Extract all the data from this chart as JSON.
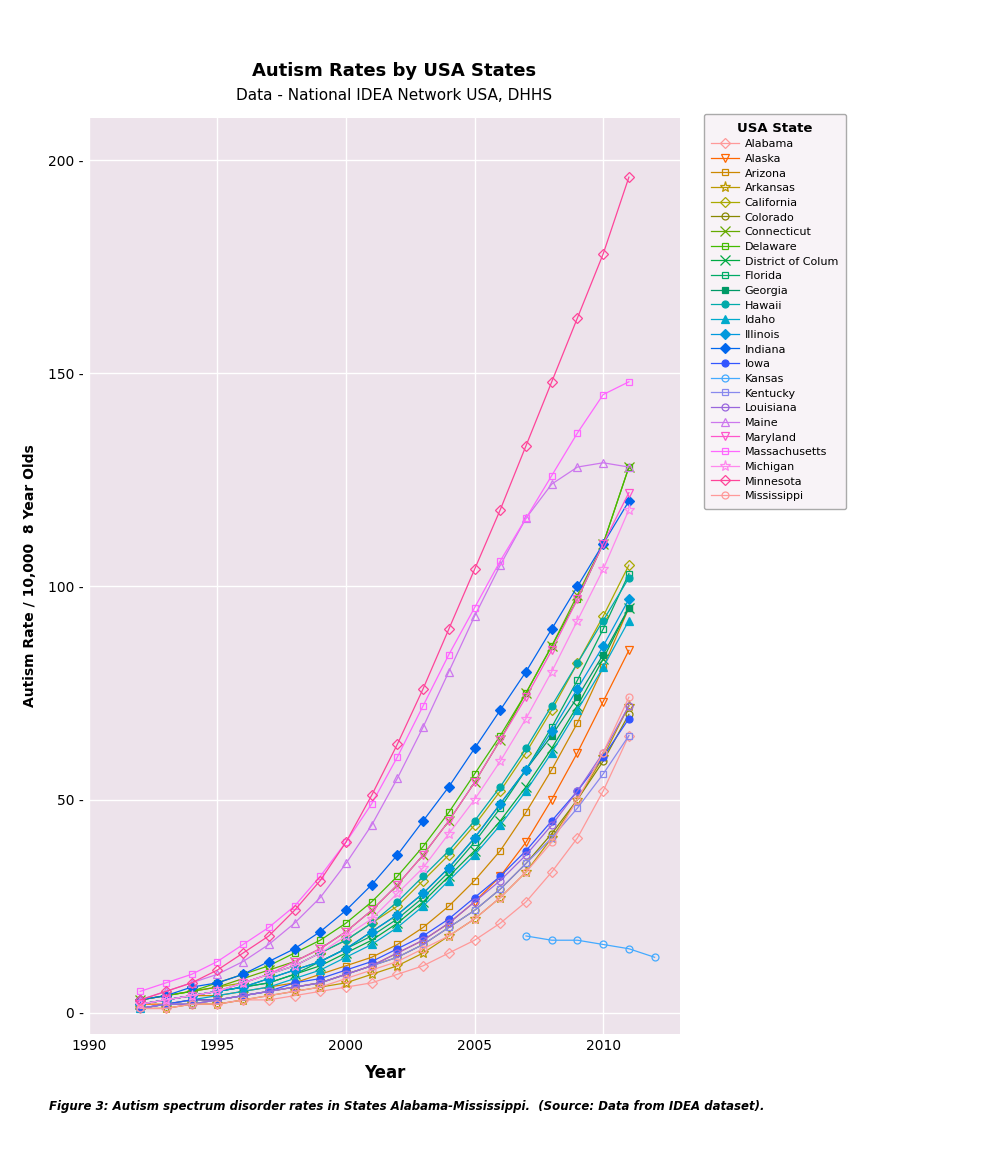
{
  "title": "Autism Rates by USA States",
  "subtitle": "Data - National IDEA Network USA, DHHS",
  "xlabel": "Year",
  "ylabel": "Autism Rate / 10,000  8 Year Olds",
  "caption": "Figure 3: Autism spectrum disorder rates in States Alabama-Mississippi.  (Source: Data from IDEA dataset).",
  "bg_color": "#ede3eb",
  "xlim": [
    1990,
    2013
  ],
  "ylim": [
    -5,
    210
  ],
  "yticks": [
    0,
    50,
    100,
    150,
    200
  ],
  "xticks": [
    1990,
    1995,
    2000,
    2005,
    2010
  ],
  "states": [
    {
      "name": "Alabama",
      "color": "#FF9999",
      "marker": "D",
      "filled": false,
      "years": [
        1992,
        1993,
        1994,
        1995,
        1996,
        1997,
        1998,
        1999,
        2000,
        2001,
        2002,
        2003,
        2004,
        2005,
        2006,
        2007,
        2008,
        2009,
        2010,
        2011
      ],
      "values": [
        1,
        1,
        2,
        2,
        3,
        3,
        4,
        5,
        6,
        7,
        9,
        11,
        14,
        17,
        21,
        26,
        33,
        41,
        52,
        65
      ]
    },
    {
      "name": "Alaska",
      "color": "#FF6600",
      "marker": "v",
      "filled": false,
      "years": [
        1992,
        1993,
        1994,
        1995,
        1996,
        1997,
        1998,
        1999,
        2000,
        2001,
        2002,
        2003,
        2004,
        2005,
        2006,
        2007,
        2008,
        2009,
        2010,
        2011
      ],
      "values": [
        2,
        2,
        3,
        3,
        4,
        5,
        6,
        7,
        9,
        11,
        14,
        17,
        21,
        26,
        32,
        40,
        50,
        61,
        73,
        85
      ]
    },
    {
      "name": "Arizona",
      "color": "#CC8800",
      "marker": "s",
      "filled": false,
      "years": [
        1992,
        1993,
        1994,
        1995,
        1996,
        1997,
        1998,
        1999,
        2000,
        2001,
        2002,
        2003,
        2004,
        2005,
        2006,
        2007,
        2008,
        2009,
        2010,
        2011
      ],
      "values": [
        2,
        3,
        4,
        4,
        5,
        6,
        7,
        9,
        11,
        13,
        16,
        20,
        25,
        31,
        38,
        47,
        57,
        68,
        81,
        95
      ]
    },
    {
      "name": "Arkansas",
      "color": "#BB9900",
      "marker": "*",
      "filled": false,
      "years": [
        1992,
        1993,
        1994,
        1995,
        1996,
        1997,
        1998,
        1999,
        2000,
        2001,
        2002,
        2003,
        2004,
        2005,
        2006,
        2007,
        2008,
        2009,
        2010,
        2011
      ],
      "values": [
        1,
        1,
        2,
        2,
        3,
        4,
        5,
        6,
        7,
        9,
        11,
        14,
        18,
        22,
        27,
        33,
        41,
        50,
        60,
        72
      ]
    },
    {
      "name": "California",
      "color": "#AAAA00",
      "marker": "D",
      "filled": false,
      "years": [
        1992,
        1993,
        1994,
        1995,
        1996,
        1997,
        1998,
        1999,
        2000,
        2001,
        2002,
        2003,
        2004,
        2005,
        2006,
        2007,
        2008,
        2009,
        2010,
        2011
      ],
      "values": [
        3,
        4,
        5,
        6,
        7,
        9,
        11,
        14,
        17,
        21,
        25,
        31,
        37,
        44,
        52,
        61,
        71,
        82,
        93,
        105
      ]
    },
    {
      "name": "Colorado",
      "color": "#888800",
      "marker": "o",
      "filled": false,
      "years": [
        1992,
        1993,
        1994,
        1995,
        1996,
        1997,
        1998,
        1999,
        2000,
        2001,
        2002,
        2003,
        2004,
        2005,
        2006,
        2007,
        2008,
        2009,
        2010,
        2011
      ],
      "values": [
        1,
        2,
        2,
        3,
        4,
        5,
        6,
        7,
        9,
        11,
        13,
        16,
        20,
        24,
        29,
        35,
        42,
        50,
        59,
        70
      ]
    },
    {
      "name": "Connecticut",
      "color": "#66AA00",
      "marker": "x",
      "filled": false,
      "years": [
        1992,
        1993,
        1994,
        1995,
        1996,
        1997,
        1998,
        1999,
        2000,
        2001,
        2002,
        2003,
        2004,
        2005,
        2006,
        2007,
        2008,
        2009,
        2010,
        2011
      ],
      "values": [
        3,
        4,
        5,
        6,
        8,
        10,
        12,
        15,
        19,
        24,
        30,
        37,
        45,
        54,
        64,
        75,
        86,
        98,
        110,
        128
      ]
    },
    {
      "name": "Delaware",
      "color": "#44BB00",
      "marker": "s",
      "filled": false,
      "years": [
        1992,
        1993,
        1994,
        1995,
        1996,
        1997,
        1998,
        1999,
        2000,
        2001,
        2002,
        2003,
        2004,
        2005,
        2006,
        2007,
        2008,
        2009,
        2010,
        2011
      ],
      "values": [
        3,
        4,
        5,
        7,
        9,
        11,
        14,
        17,
        21,
        26,
        32,
        39,
        47,
        56,
        65,
        75,
        86,
        97,
        110,
        128
      ]
    },
    {
      "name": "District of Colum",
      "color": "#00AA44",
      "marker": "x",
      "filled": false,
      "years": [
        1992,
        1993,
        1994,
        1995,
        1996,
        1997,
        1998,
        1999,
        2000,
        2001,
        2002,
        2003,
        2004,
        2005,
        2006,
        2007,
        2008,
        2009,
        2010,
        2011
      ],
      "values": [
        2,
        3,
        4,
        5,
        6,
        7,
        9,
        11,
        14,
        17,
        21,
        26,
        32,
        38,
        45,
        53,
        62,
        72,
        83,
        95
      ]
    },
    {
      "name": "Florida",
      "color": "#00AA66",
      "marker": "s",
      "filled": false,
      "years": [
        1992,
        1993,
        1994,
        1995,
        1996,
        1997,
        1998,
        1999,
        2000,
        2001,
        2002,
        2003,
        2004,
        2005,
        2006,
        2007,
        2008,
        2009,
        2010,
        2011
      ],
      "values": [
        2,
        3,
        4,
        5,
        6,
        7,
        9,
        12,
        15,
        18,
        22,
        27,
        33,
        40,
        48,
        57,
        67,
        78,
        90,
        103
      ]
    },
    {
      "name": "Georgia",
      "color": "#009966",
      "marker": "s",
      "filled": true,
      "years": [
        1992,
        1993,
        1994,
        1995,
        1996,
        1997,
        1998,
        1999,
        2000,
        2001,
        2002,
        2003,
        2004,
        2005,
        2006,
        2007,
        2008,
        2009,
        2010,
        2011
      ],
      "values": [
        2,
        3,
        4,
        5,
        6,
        8,
        10,
        12,
        15,
        19,
        23,
        28,
        34,
        41,
        49,
        57,
        65,
        74,
        84,
        95
      ]
    },
    {
      "name": "Hawaii",
      "color": "#00AAAA",
      "marker": "o",
      "filled": true,
      "years": [
        1992,
        1993,
        1994,
        1995,
        1996,
        1997,
        1998,
        1999,
        2000,
        2001,
        2002,
        2003,
        2004,
        2005,
        2006,
        2007,
        2008,
        2009,
        2010,
        2011
      ],
      "values": [
        2,
        3,
        4,
        5,
        7,
        9,
        11,
        14,
        17,
        21,
        26,
        32,
        38,
        45,
        53,
        62,
        72,
        82,
        92,
        102
      ]
    },
    {
      "name": "Idaho",
      "color": "#00AACC",
      "marker": "^",
      "filled": true,
      "years": [
        1992,
        1993,
        1994,
        1995,
        1996,
        1997,
        1998,
        1999,
        2000,
        2001,
        2002,
        2003,
        2004,
        2005,
        2006,
        2007,
        2008,
        2009,
        2010,
        2011
      ],
      "values": [
        1,
        2,
        3,
        4,
        5,
        6,
        8,
        10,
        13,
        16,
        20,
        25,
        31,
        37,
        44,
        52,
        61,
        71,
        81,
        92
      ]
    },
    {
      "name": "Illinois",
      "color": "#0099DD",
      "marker": "D",
      "filled": true,
      "years": [
        1992,
        1993,
        1994,
        1995,
        1996,
        1997,
        1998,
        1999,
        2000,
        2001,
        2002,
        2003,
        2004,
        2005,
        2006,
        2007,
        2008,
        2009,
        2010,
        2011
      ],
      "values": [
        2,
        3,
        4,
        5,
        6,
        8,
        10,
        12,
        15,
        19,
        23,
        28,
        34,
        41,
        49,
        57,
        66,
        76,
        86,
        97
      ]
    },
    {
      "name": "Indiana",
      "color": "#0066EE",
      "marker": "D",
      "filled": true,
      "years": [
        1992,
        1993,
        1994,
        1995,
        1996,
        1997,
        1998,
        1999,
        2000,
        2001,
        2002,
        2003,
        2004,
        2005,
        2006,
        2007,
        2008,
        2009,
        2010,
        2011
      ],
      "values": [
        3,
        4,
        6,
        7,
        9,
        12,
        15,
        19,
        24,
        30,
        37,
        45,
        53,
        62,
        71,
        80,
        90,
        100,
        110,
        120
      ]
    },
    {
      "name": "Iowa",
      "color": "#3355FF",
      "marker": "o",
      "filled": true,
      "years": [
        1992,
        1993,
        1994,
        1995,
        1996,
        1997,
        1998,
        1999,
        2000,
        2001,
        2002,
        2003,
        2004,
        2005,
        2006,
        2007,
        2008,
        2009,
        2010,
        2011
      ],
      "values": [
        1,
        2,
        3,
        3,
        4,
        5,
        7,
        8,
        10,
        12,
        15,
        18,
        22,
        27,
        32,
        38,
        45,
        52,
        60,
        69
      ]
    },
    {
      "name": "Kansas",
      "color": "#44AAFF",
      "marker": "o",
      "filled": false,
      "years": [
        2007,
        2008,
        2009,
        2010,
        2011,
        2012
      ],
      "values": [
        18,
        17,
        17,
        16,
        15,
        13
      ]
    },
    {
      "name": "Kentucky",
      "color": "#8888EE",
      "marker": "s",
      "filled": false,
      "years": [
        1992,
        1993,
        1994,
        1995,
        1996,
        1997,
        1998,
        1999,
        2000,
        2001,
        2002,
        2003,
        2004,
        2005,
        2006,
        2007,
        2008,
        2009,
        2010,
        2011
      ],
      "values": [
        1,
        2,
        2,
        3,
        4,
        5,
        6,
        7,
        9,
        11,
        13,
        16,
        20,
        24,
        29,
        35,
        41,
        48,
        56,
        65
      ]
    },
    {
      "name": "Louisiana",
      "color": "#9966DD",
      "marker": "o",
      "filled": false,
      "years": [
        1992,
        1993,
        1994,
        1995,
        1996,
        1997,
        1998,
        1999,
        2000,
        2001,
        2002,
        2003,
        2004,
        2005,
        2006,
        2007,
        2008,
        2009,
        2010,
        2011
      ],
      "values": [
        1,
        2,
        2,
        3,
        4,
        5,
        6,
        7,
        9,
        11,
        14,
        17,
        21,
        26,
        31,
        37,
        44,
        52,
        61,
        72
      ]
    },
    {
      "name": "Maine",
      "color": "#CC77EE",
      "marker": "^",
      "filled": false,
      "years": [
        1992,
        1993,
        1994,
        1995,
        1996,
        1997,
        1998,
        1999,
        2000,
        2001,
        2002,
        2003,
        2004,
        2005,
        2006,
        2007,
        2008,
        2009,
        2010,
        2011
      ],
      "values": [
        3,
        5,
        7,
        9,
        12,
        16,
        21,
        27,
        35,
        44,
        55,
        67,
        80,
        93,
        105,
        116,
        124,
        128,
        129,
        128
      ]
    },
    {
      "name": "Maryland",
      "color": "#FF55CC",
      "marker": "v",
      "filled": false,
      "years": [
        1992,
        1993,
        1994,
        1995,
        1996,
        1997,
        1998,
        1999,
        2000,
        2001,
        2002,
        2003,
        2004,
        2005,
        2006,
        2007,
        2008,
        2009,
        2010,
        2011
      ],
      "values": [
        2,
        3,
        4,
        5,
        7,
        9,
        12,
        15,
        19,
        24,
        30,
        37,
        45,
        54,
        64,
        74,
        85,
        97,
        110,
        122
      ]
    },
    {
      "name": "Massachusetts",
      "color": "#FF66FF",
      "marker": "s",
      "filled": false,
      "years": [
        1992,
        1993,
        1994,
        1995,
        1996,
        1997,
        1998,
        1999,
        2000,
        2001,
        2002,
        2003,
        2004,
        2005,
        2006,
        2007,
        2008,
        2009,
        2010,
        2011
      ],
      "values": [
        5,
        7,
        9,
        12,
        16,
        20,
        25,
        32,
        40,
        49,
        60,
        72,
        84,
        95,
        106,
        116,
        126,
        136,
        145,
        148
      ]
    },
    {
      "name": "Michigan",
      "color": "#FF88EE",
      "marker": "*",
      "filled": false,
      "years": [
        1992,
        1993,
        1994,
        1995,
        1996,
        1997,
        1998,
        1999,
        2000,
        2001,
        2002,
        2003,
        2004,
        2005,
        2006,
        2007,
        2008,
        2009,
        2010,
        2011
      ],
      "values": [
        2,
        3,
        4,
        5,
        7,
        9,
        11,
        14,
        18,
        22,
        28,
        34,
        42,
        50,
        59,
        69,
        80,
        92,
        104,
        118
      ]
    },
    {
      "name": "Minnesota",
      "color": "#FF4499",
      "marker": "D",
      "filled": false,
      "years": [
        1992,
        1993,
        1994,
        1995,
        1996,
        1997,
        1998,
        1999,
        2000,
        2001,
        2002,
        2003,
        2004,
        2005,
        2006,
        2007,
        2008,
        2009,
        2010,
        2011
      ],
      "values": [
        3,
        5,
        7,
        10,
        14,
        18,
        24,
        31,
        40,
        51,
        63,
        76,
        90,
        104,
        118,
        133,
        148,
        163,
        178,
        196
      ]
    },
    {
      "name": "Mississippi",
      "color": "#FF9999",
      "marker": "o",
      "filled": false,
      "years": [
        1992,
        1993,
        1994,
        1995,
        1996,
        1997,
        1998,
        1999,
        2000,
        2001,
        2002,
        2003,
        2004,
        2005,
        2006,
        2007,
        2008,
        2009,
        2010,
        2011
      ],
      "values": [
        1,
        1,
        2,
        2,
        3,
        4,
        5,
        6,
        8,
        10,
        12,
        15,
        18,
        22,
        27,
        33,
        40,
        50,
        61,
        74
      ]
    }
  ]
}
